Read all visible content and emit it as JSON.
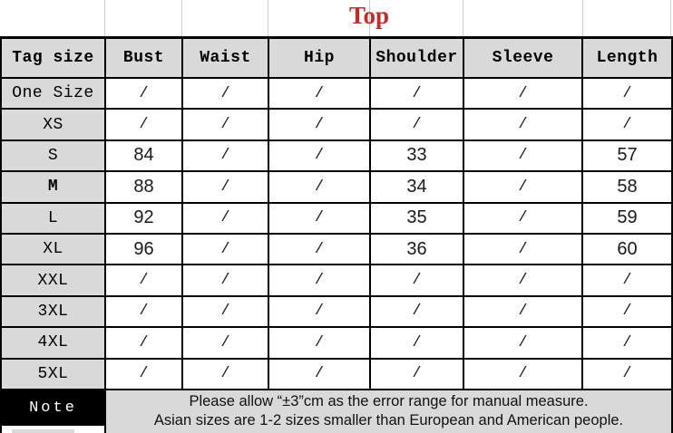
{
  "chart_data": {
    "type": "table",
    "title": "Top",
    "columns": [
      "Tag size",
      "Bust",
      "Waist",
      "Hip",
      "Shoulder",
      "Sleeve",
      "Length"
    ],
    "rows": [
      {
        "label": "One Size",
        "values": [
          "/",
          "/",
          "/",
          "/",
          "/",
          "/"
        ]
      },
      {
        "label": "XS",
        "values": [
          "/",
          "/",
          "/",
          "/",
          "/",
          "/"
        ]
      },
      {
        "label": "S",
        "values": [
          "84",
          "/",
          "/",
          "33",
          "/",
          "57"
        ]
      },
      {
        "label": "M",
        "values": [
          "88",
          "/",
          "/",
          "34",
          "/",
          "58"
        ],
        "bold": true
      },
      {
        "label": "L",
        "values": [
          "92",
          "/",
          "/",
          "35",
          "/",
          "59"
        ]
      },
      {
        "label": "XL",
        "values": [
          "96",
          "/",
          "/",
          "36",
          "/",
          "60"
        ]
      },
      {
        "label": "XXL",
        "values": [
          "/",
          "/",
          "/",
          "/",
          "/",
          "/"
        ]
      },
      {
        "label": "3XL",
        "values": [
          "/",
          "/",
          "/",
          "/",
          "/",
          "/"
        ]
      },
      {
        "label": "4XL",
        "values": [
          "/",
          "/",
          "/",
          "/",
          "/",
          "/"
        ]
      },
      {
        "label": "5XL",
        "values": [
          "/",
          "/",
          "/",
          "/",
          "/",
          "/"
        ]
      }
    ],
    "note": {
      "label": "Note",
      "lines": [
        "Please allow “±3”cm as the error range for manual measure.",
        "Asian sizes are 1-2 sizes smaller than European and American people."
      ]
    },
    "layout_hints": {
      "legend_position": "none",
      "grid": "on"
    },
    "colors": {
      "title_red": "#c92926",
      "header_gray": "#d9d9d9",
      "note_background": "#000000",
      "border_black": "#000000"
    }
  }
}
